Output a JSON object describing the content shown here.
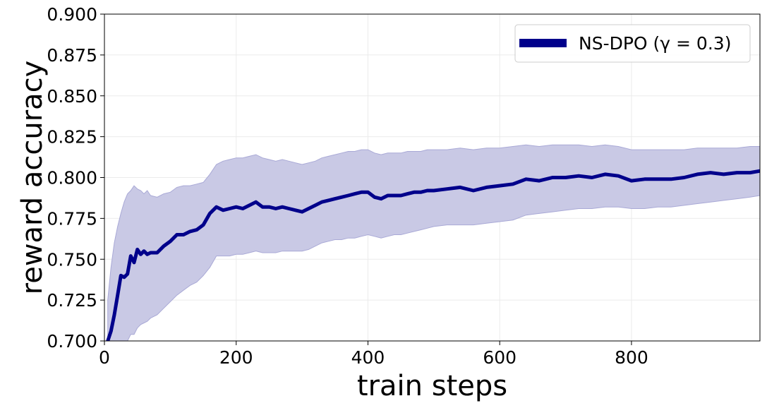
{
  "chart_data": {
    "type": "line",
    "xlabel": "train steps",
    "ylabel": "reward accuracy",
    "xlim": [
      0,
      995
    ],
    "ylim": [
      0.7,
      0.9
    ],
    "xticks": [
      "0",
      "200",
      "400",
      "600",
      "800"
    ],
    "xtick_values": [
      0,
      200,
      400,
      600,
      800
    ],
    "yticks": [
      "0.700",
      "0.725",
      "0.750",
      "0.775",
      "0.800",
      "0.825",
      "0.850",
      "0.875",
      "0.900"
    ],
    "ytick_values": [
      0.7,
      0.725,
      0.75,
      0.775,
      0.8,
      0.825,
      0.85,
      0.875,
      0.9
    ],
    "grid": true,
    "legend_position": "top-right",
    "series": [
      {
        "name": "NS-DPO (γ = 0.3)",
        "color": "#00008b",
        "band_color": "#c9c9e5",
        "x": [
          5,
          10,
          15,
          20,
          25,
          30,
          35,
          40,
          45,
          50,
          55,
          60,
          65,
          70,
          80,
          90,
          100,
          110,
          120,
          130,
          140,
          150,
          160,
          170,
          180,
          190,
          200,
          210,
          220,
          230,
          240,
          250,
          260,
          270,
          280,
          290,
          300,
          310,
          320,
          330,
          340,
          350,
          360,
          370,
          380,
          390,
          400,
          410,
          420,
          430,
          440,
          450,
          460,
          470,
          480,
          490,
          500,
          520,
          540,
          560,
          580,
          600,
          620,
          640,
          660,
          680,
          700,
          720,
          740,
          760,
          780,
          800,
          820,
          840,
          860,
          880,
          900,
          920,
          940,
          960,
          980,
          995
        ],
        "y": [
          0.7,
          0.706,
          0.716,
          0.728,
          0.74,
          0.739,
          0.741,
          0.752,
          0.748,
          0.756,
          0.753,
          0.755,
          0.753,
          0.754,
          0.754,
          0.758,
          0.761,
          0.765,
          0.765,
          0.767,
          0.768,
          0.771,
          0.778,
          0.782,
          0.78,
          0.781,
          0.782,
          0.781,
          0.783,
          0.785,
          0.782,
          0.782,
          0.781,
          0.782,
          0.781,
          0.78,
          0.779,
          0.781,
          0.783,
          0.785,
          0.786,
          0.787,
          0.788,
          0.789,
          0.79,
          0.791,
          0.791,
          0.788,
          0.787,
          0.789,
          0.789,
          0.789,
          0.79,
          0.791,
          0.791,
          0.792,
          0.792,
          0.793,
          0.794,
          0.792,
          0.794,
          0.795,
          0.796,
          0.799,
          0.798,
          0.8,
          0.8,
          0.801,
          0.8,
          0.802,
          0.801,
          0.798,
          0.799,
          0.799,
          0.799,
          0.8,
          0.802,
          0.803,
          0.802,
          0.803,
          0.803,
          0.804
        ],
        "upper": [
          0.725,
          0.745,
          0.76,
          0.77,
          0.778,
          0.785,
          0.79,
          0.792,
          0.795,
          0.793,
          0.792,
          0.79,
          0.792,
          0.789,
          0.788,
          0.79,
          0.791,
          0.794,
          0.795,
          0.795,
          0.796,
          0.797,
          0.802,
          0.808,
          0.81,
          0.811,
          0.812,
          0.812,
          0.813,
          0.814,
          0.812,
          0.811,
          0.81,
          0.811,
          0.81,
          0.809,
          0.808,
          0.809,
          0.81,
          0.812,
          0.813,
          0.814,
          0.815,
          0.816,
          0.816,
          0.817,
          0.817,
          0.815,
          0.814,
          0.815,
          0.815,
          0.815,
          0.816,
          0.816,
          0.816,
          0.817,
          0.817,
          0.817,
          0.818,
          0.817,
          0.818,
          0.818,
          0.819,
          0.82,
          0.819,
          0.82,
          0.82,
          0.82,
          0.819,
          0.82,
          0.819,
          0.817,
          0.817,
          0.817,
          0.817,
          0.817,
          0.818,
          0.818,
          0.818,
          0.818,
          0.819,
          0.819
        ],
        "lower": [
          0.69,
          0.69,
          0.69,
          0.69,
          0.692,
          0.698,
          0.7,
          0.704,
          0.704,
          0.708,
          0.71,
          0.711,
          0.712,
          0.714,
          0.716,
          0.72,
          0.724,
          0.728,
          0.731,
          0.734,
          0.736,
          0.74,
          0.745,
          0.752,
          0.752,
          0.752,
          0.753,
          0.753,
          0.754,
          0.755,
          0.754,
          0.754,
          0.754,
          0.755,
          0.755,
          0.755,
          0.755,
          0.756,
          0.758,
          0.76,
          0.761,
          0.762,
          0.762,
          0.763,
          0.763,
          0.764,
          0.765,
          0.764,
          0.763,
          0.764,
          0.765,
          0.765,
          0.766,
          0.767,
          0.768,
          0.769,
          0.77,
          0.771,
          0.771,
          0.771,
          0.772,
          0.773,
          0.774,
          0.777,
          0.778,
          0.779,
          0.78,
          0.781,
          0.781,
          0.782,
          0.782,
          0.781,
          0.781,
          0.782,
          0.782,
          0.783,
          0.784,
          0.785,
          0.786,
          0.787,
          0.788,
          0.789
        ]
      }
    ]
  }
}
